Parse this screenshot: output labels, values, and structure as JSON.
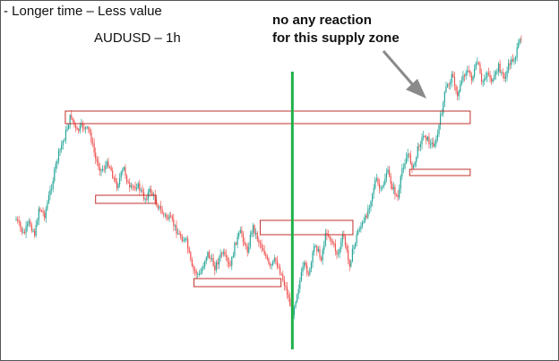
{
  "header": {
    "subtitle": "- Longer time – Less value",
    "pair_label": "AUDUSD – 1h"
  },
  "annotation": {
    "line1": "no any reaction",
    "line2": "for this supply zone"
  },
  "colors": {
    "bull": "#26a69a",
    "bear": "#ef5350",
    "zone": "#c0312b",
    "marker": "#1fb04a",
    "arrow": "#8a8a8a"
  },
  "chart_data": {
    "type": "candlestick",
    "title": "AUDUSD – 1h",
    "xlabel": "",
    "ylabel": "",
    "price_path": [
      [
        0,
        245
      ],
      [
        8,
        262
      ],
      [
        14,
        248
      ],
      [
        20,
        262
      ],
      [
        24,
        232
      ],
      [
        30,
        240
      ],
      [
        38,
        205
      ],
      [
        44,
        175
      ],
      [
        52,
        150
      ],
      [
        58,
        128
      ],
      [
        64,
        148
      ],
      [
        70,
        140
      ],
      [
        78,
        148
      ],
      [
        84,
        178
      ],
      [
        90,
        190
      ],
      [
        98,
        182
      ],
      [
        106,
        208
      ],
      [
        114,
        188
      ],
      [
        120,
        212
      ],
      [
        128,
        206
      ],
      [
        136,
        222
      ],
      [
        142,
        212
      ],
      [
        148,
        226
      ],
      [
        156,
        240
      ],
      [
        164,
        246
      ],
      [
        172,
        262
      ],
      [
        180,
        270
      ],
      [
        186,
        300
      ],
      [
        194,
        308
      ],
      [
        202,
        282
      ],
      [
        210,
        298
      ],
      [
        218,
        282
      ],
      [
        226,
        300
      ],
      [
        232,
        270
      ],
      [
        238,
        258
      ],
      [
        244,
        282
      ],
      [
        250,
        252
      ],
      [
        256,
        268
      ],
      [
        262,
        280
      ],
      [
        268,
        300
      ],
      [
        274,
        290
      ],
      [
        280,
        305
      ],
      [
        286,
        325
      ],
      [
        292,
        350
      ],
      [
        298,
        322
      ],
      [
        304,
        296
      ],
      [
        310,
        306
      ],
      [
        316,
        270
      ],
      [
        322,
        290
      ],
      [
        328,
        258
      ],
      [
        334,
        270
      ],
      [
        340,
        285
      ],
      [
        346,
        262
      ],
      [
        352,
        296
      ],
      [
        356,
        280
      ],
      [
        362,
        255
      ],
      [
        368,
        248
      ],
      [
        374,
        226
      ],
      [
        380,
        200
      ],
      [
        386,
        215
      ],
      [
        392,
        190
      ],
      [
        398,
        210
      ],
      [
        404,
        222
      ],
      [
        408,
        188
      ],
      [
        414,
        172
      ],
      [
        420,
        188
      ],
      [
        426,
        160
      ],
      [
        432,
        150
      ],
      [
        438,
        162
      ],
      [
        444,
        158
      ],
      [
        448,
        135
      ],
      [
        454,
        100
      ],
      [
        458,
        92
      ],
      [
        462,
        82
      ],
      [
        466,
        112
      ],
      [
        470,
        90
      ],
      [
        476,
        78
      ],
      [
        482,
        88
      ],
      [
        488,
        68
      ],
      [
        492,
        94
      ],
      [
        498,
        80
      ],
      [
        504,
        92
      ],
      [
        510,
        74
      ],
      [
        516,
        88
      ],
      [
        522,
        70
      ],
      [
        528,
        62
      ],
      [
        532,
        48
      ],
      [
        534,
        40
      ]
    ],
    "supply_demand_zones": [
      {
        "kind": "supply",
        "x0": 52,
        "x1": 480,
        "y0": 124,
        "y1": 138
      },
      {
        "kind": "demand",
        "x0": 84,
        "x1": 148,
        "y0": 218,
        "y1": 227
      },
      {
        "kind": "demand",
        "x0": 188,
        "x1": 280,
        "y0": 311,
        "y1": 320
      },
      {
        "kind": "supply",
        "x0": 258,
        "x1": 356,
        "y0": 246,
        "y1": 262
      },
      {
        "kind": "demand",
        "x0": 416,
        "x1": 480,
        "y0": 189,
        "y1": 196
      }
    ],
    "event_marker": {
      "x": 292
    },
    "grid": false,
    "legend": "none"
  }
}
